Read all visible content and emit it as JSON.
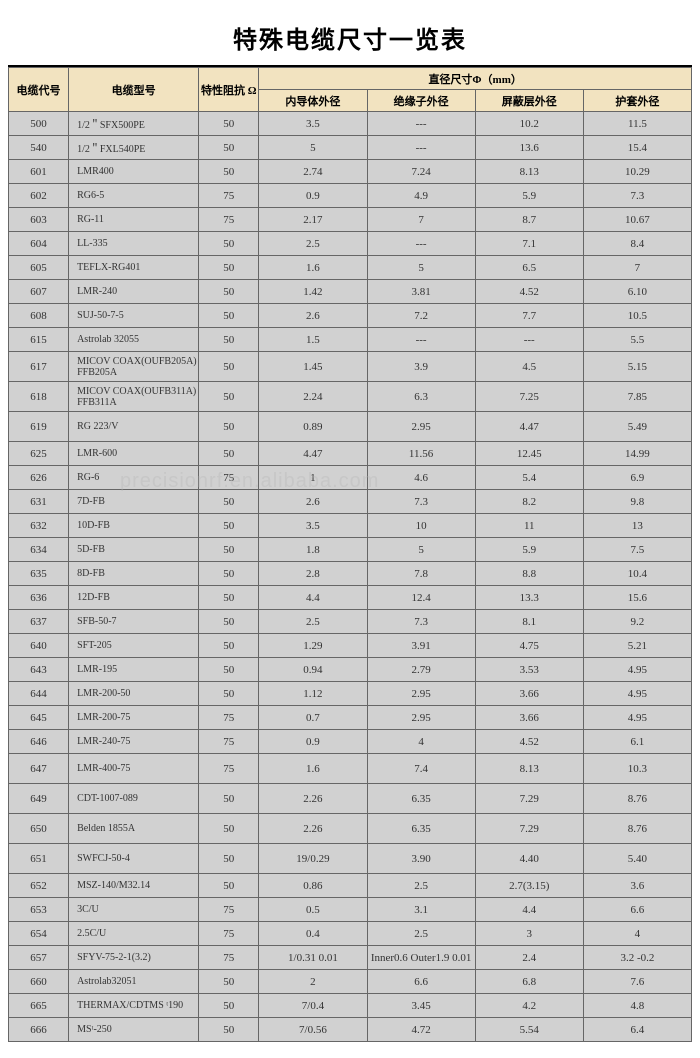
{
  "title": "特殊电缆尺寸一览表",
  "watermark": "precisionrf.en.alibaba.com",
  "headers": {
    "code": "电缆代号",
    "model": "电缆型号",
    "impedance": "特性阻抗\nΩ",
    "diameter_group": "直径尺寸Φ（mm）",
    "inner": "内导体外径",
    "insul": "绝缘子外径",
    "shield": "屏蔽层外径",
    "jacket": "护套外径"
  },
  "col_widths": [
    "60px",
    "130px",
    "60px",
    "108px",
    "108px",
    "108px",
    "108px"
  ],
  "header_bg": "#f2e3c0",
  "cell_bg": "#d1d1d1",
  "border_color": "#666666",
  "rows": [
    {
      "code": "500",
      "model": "1/2＂SFX500PE",
      "z": "50",
      "d1": "3.5",
      "d2": "---",
      "d3": "10.2",
      "d4": "11.5"
    },
    {
      "code": "540",
      "model": "1/2＂FXL540PE",
      "z": "50",
      "d1": "5",
      "d2": "---",
      "d3": "13.6",
      "d4": "15.4"
    },
    {
      "code": "601",
      "model": "LMR400",
      "z": "50",
      "d1": "2.74",
      "d2": "7.24",
      "d3": "8.13",
      "d4": "10.29"
    },
    {
      "code": "602",
      "model": "RG6-5",
      "z": "75",
      "d1": "0.9",
      "d2": "4.9",
      "d3": "5.9",
      "d4": "7.3"
    },
    {
      "code": "603",
      "model": "RG-11",
      "z": "75",
      "d1": "2.17",
      "d2": "7",
      "d3": "8.7",
      "d4": "10.67"
    },
    {
      "code": "604",
      "model": "LL-335",
      "z": "50",
      "d1": "2.5",
      "d2": "---",
      "d3": "7.1",
      "d4": "8.4"
    },
    {
      "code": "605",
      "model": "TEFLX-RG401",
      "z": "50",
      "d1": "1.6",
      "d2": "5",
      "d3": "6.5",
      "d4": "7"
    },
    {
      "code": "607",
      "model": "LMR-240",
      "z": "50",
      "d1": "1.42",
      "d2": "3.81",
      "d3": "4.52",
      "d4": "6.10"
    },
    {
      "code": "608",
      "model": "SUJ-50-7-5",
      "z": "50",
      "d1": "2.6",
      "d2": "7.2",
      "d3": "7.7",
      "d4": "10.5"
    },
    {
      "code": "615",
      "model": "Astrolab 32055",
      "z": "50",
      "d1": "1.5",
      "d2": "---",
      "d3": "---",
      "d4": "5.5"
    },
    {
      "code": "617",
      "model": "MICOV COAX(OUFB205A) FFB205A",
      "z": "50",
      "d1": "1.45",
      "d2": "3.9",
      "d3": "4.5",
      "d4": "5.15",
      "tall": true
    },
    {
      "code": "618",
      "model": "MICOV COAX(OUFB311A) FFB311A",
      "z": "50",
      "d1": "2.24",
      "d2": "6.3",
      "d3": "7.25",
      "d4": "7.85",
      "tall": true
    },
    {
      "code": "619",
      "model": "RG 223/V",
      "z": "50",
      "d1": "0.89",
      "d2": "2.95",
      "d3": "4.47",
      "d4": "5.49",
      "tall": true
    },
    {
      "code": "625",
      "model": "LMR-600",
      "z": "50",
      "d1": "4.47",
      "d2": "11.56",
      "d3": "12.45",
      "d4": "14.99"
    },
    {
      "code": "626",
      "model": "RG-6",
      "z": "75",
      "d1": "1",
      "d2": "4.6",
      "d3": "5.4",
      "d4": "6.9"
    },
    {
      "code": "631",
      "model": "7D-FB",
      "z": "50",
      "d1": "2.6",
      "d2": "7.3",
      "d3": "8.2",
      "d4": "9.8"
    },
    {
      "code": "632",
      "model": "10D-FB",
      "z": "50",
      "d1": "3.5",
      "d2": "10",
      "d3": "11",
      "d4": "13"
    },
    {
      "code": "634",
      "model": "5D-FB",
      "z": "50",
      "d1": "1.8",
      "d2": "5",
      "d3": "5.9",
      "d4": "7.5"
    },
    {
      "code": "635",
      "model": "8D-FB",
      "z": "50",
      "d1": "2.8",
      "d2": "7.8",
      "d3": "8.8",
      "d4": "10.4"
    },
    {
      "code": "636",
      "model": "12D-FB",
      "z": "50",
      "d1": "4.4",
      "d2": "12.4",
      "d3": "13.3",
      "d4": "15.6"
    },
    {
      "code": "637",
      "model": "SFB-50-7",
      "z": "50",
      "d1": "2.5",
      "d2": "7.3",
      "d3": "8.1",
      "d4": "9.2"
    },
    {
      "code": "640",
      "model": "SFT-205",
      "z": "50",
      "d1": "1.29",
      "d2": "3.91",
      "d3": "4.75",
      "d4": "5.21"
    },
    {
      "code": "643",
      "model": "LMR-195",
      "z": "50",
      "d1": "0.94",
      "d2": "2.79",
      "d3": "3.53",
      "d4": "4.95"
    },
    {
      "code": "644",
      "model": "LMR-200-50",
      "z": "50",
      "d1": "1.12",
      "d2": "2.95",
      "d3": "3.66",
      "d4": "4.95"
    },
    {
      "code": "645",
      "model": "LMR-200-75",
      "z": "75",
      "d1": "0.7",
      "d2": "2.95",
      "d3": "3.66",
      "d4": "4.95"
    },
    {
      "code": "646",
      "model": "LMR-240-75",
      "z": "75",
      "d1": "0.9",
      "d2": "4",
      "d3": "4.52",
      "d4": "6.1"
    },
    {
      "code": "647",
      "model": "LMR-400-75",
      "z": "75",
      "d1": "1.6",
      "d2": "7.4",
      "d3": "8.13",
      "d4": "10.3",
      "tall": true
    },
    {
      "code": "649",
      "model": "CDT-1007-089",
      "z": "50",
      "d1": "2.26",
      "d2": "6.35",
      "d3": "7.29",
      "d4": "8.76",
      "tall": true
    },
    {
      "code": "650",
      "model": "Belden 1855A",
      "z": "50",
      "d1": "2.26",
      "d2": "6.35",
      "d3": "7.29",
      "d4": "8.76",
      "tall": true
    },
    {
      "code": "651",
      "model": "SWFCJ-50-4",
      "z": "50",
      "d1": "19/0.29",
      "d2": "3.90",
      "d3": "4.40",
      "d4": "5.40",
      "tall": true
    },
    {
      "code": "652",
      "model": "MSZ-140/M32.14",
      "z": "50",
      "d1": "0.86",
      "d2": "2.5",
      "d3": "2.7(3.15)",
      "d4": "3.6"
    },
    {
      "code": "653",
      "model": "3C/U",
      "z": "75",
      "d1": "0.5",
      "d2": "3.1",
      "d3": "4.4",
      "d4": "6.6"
    },
    {
      "code": "654",
      "model": "2.5C/U",
      "z": "75",
      "d1": "0.4",
      "d2": "2.5",
      "d3": "3",
      "d4": "4"
    },
    {
      "code": "657",
      "model": "SFYV-75-2-1(3.2)",
      "z": "75",
      "d1": "1/0.31  0.01",
      "d2": "Inner0.6  Outer1.9  0.01",
      "d3": "2.4",
      "d4": "3.2 -0.2"
    },
    {
      "code": "660",
      "model": "Astrolab32051",
      "z": "50",
      "d1": "2",
      "d2": "6.6",
      "d3": "6.8",
      "d4": "7.6"
    },
    {
      "code": "665",
      "model": "THERMAX/CDTMS ᵗ190",
      "z": "50",
      "d1": "7/0.4",
      "d2": "3.45",
      "d3": "4.2",
      "d4": "4.8"
    },
    {
      "code": "666",
      "model": "MSᵗ-250",
      "z": "50",
      "d1": "7/0.56",
      "d2": "4.72",
      "d3": "5.54",
      "d4": "6.4"
    }
  ]
}
